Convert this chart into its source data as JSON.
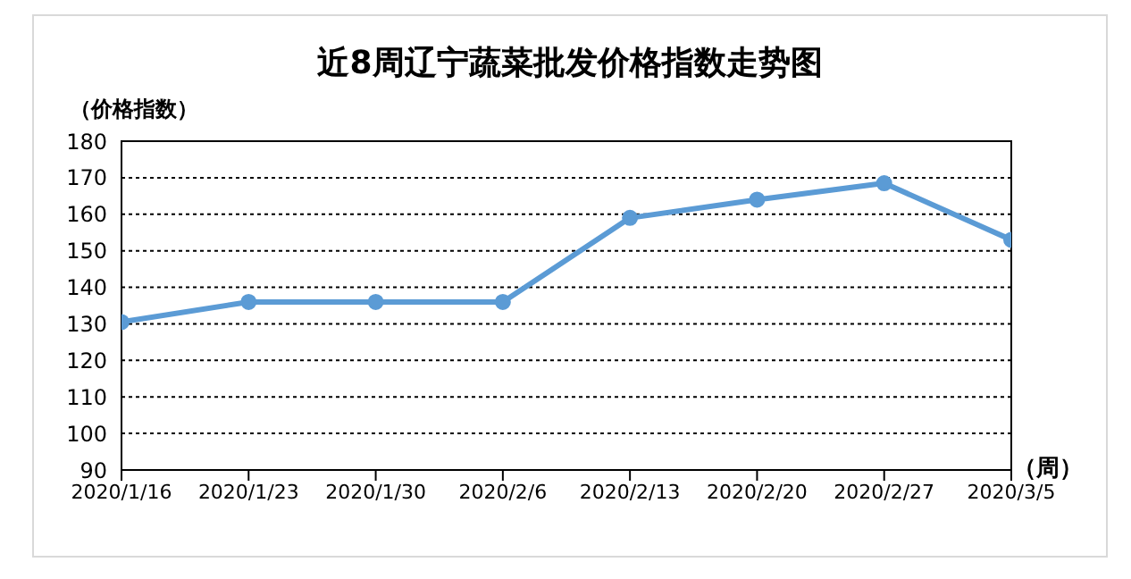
{
  "chart_data": {
    "type": "line",
    "title": "近8周辽宁蔬菜批发价格指数走势图",
    "ylabel": "（价格指数）",
    "xlabel": "（周）",
    "categories": [
      "2020/1/16",
      "2020/1/23",
      "2020/1/30",
      "2020/2/6",
      "2020/2/13",
      "2020/2/20",
      "2020/2/27",
      "2020/3/5"
    ],
    "series": [
      {
        "color": "#5b9bd5",
        "values": [
          130.5,
          136,
          136,
          136,
          159,
          164,
          168.5,
          153
        ]
      }
    ],
    "ylim": [
      90,
      180
    ],
    "yticks": [
      90,
      100,
      110,
      120,
      130,
      140,
      150,
      160,
      170,
      180
    ],
    "grid": "y",
    "legend": false,
    "marker": "circle",
    "line_style": "solid"
  }
}
